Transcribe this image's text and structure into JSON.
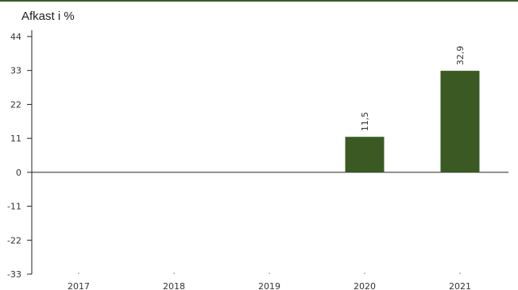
{
  "chart_data": {
    "type": "bar",
    "ylabel": "Afkast i %",
    "categories": [
      "2017",
      "2018",
      "2019",
      "2020",
      "2021"
    ],
    "values": [
      null,
      null,
      null,
      11.5,
      32.9
    ],
    "data_labels": [
      "",
      "",
      "",
      "11,5",
      "32,9"
    ],
    "yticks": [
      44,
      33,
      22,
      11,
      0,
      -11,
      -22,
      -33
    ],
    "ylim": [
      -33,
      44
    ],
    "grid": false,
    "legend": "none",
    "bar_color": "#3b5a23"
  }
}
